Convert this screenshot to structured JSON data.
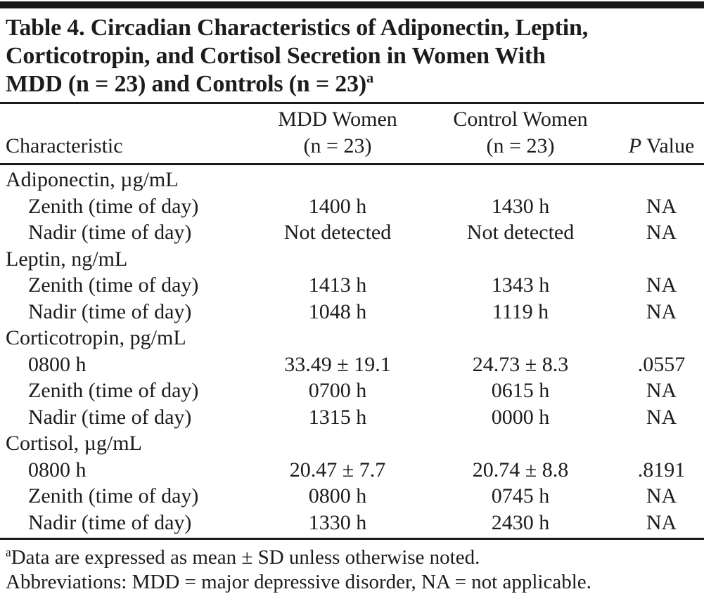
{
  "colors": {
    "ink": "#1a1a1a",
    "background": "#ffffff"
  },
  "title": {
    "line1": "Table 4. Circadian Characteristics of Adiponectin, Leptin,",
    "line2": "Corticotropin, and Cortisol Secretion in Women With",
    "line3": "MDD (n = 23) and Controls (n = 23)",
    "superscript": "a"
  },
  "header": {
    "characteristic": "Characteristic",
    "mdd_line1": "MDD Women",
    "mdd_line2": "(n = 23)",
    "control_line1": "Control Women",
    "control_line2": "(n = 23)",
    "p_italic": "P",
    "p_rest": " Value"
  },
  "rows": [
    {
      "label": "Adiponectin, µg/mL",
      "mdd": "",
      "control": "",
      "p": ""
    },
    {
      "label": "Zenith (time of day)",
      "mdd": "1400 h",
      "control": "1430 h",
      "p": "NA"
    },
    {
      "label": "Nadir (time of day)",
      "mdd": "Not detected",
      "control": "Not detected",
      "p": "NA"
    },
    {
      "label": "Leptin, ng/mL",
      "mdd": "",
      "control": "",
      "p": ""
    },
    {
      "label": "Zenith (time of day)",
      "mdd": "1413 h",
      "control": "1343 h",
      "p": "NA"
    },
    {
      "label": "Nadir (time of day)",
      "mdd": "1048 h",
      "control": "1119 h",
      "p": "NA"
    },
    {
      "label": "Corticotropin, pg/mL",
      "mdd": "",
      "control": "",
      "p": ""
    },
    {
      "label": "0800 h",
      "mdd": "33.49 ± 19.1",
      "control": "24.73 ± 8.3",
      "p": ".0557"
    },
    {
      "label": "Zenith (time of day)",
      "mdd": "0700 h",
      "control": "0615 h",
      "p": "NA"
    },
    {
      "label": "Nadir (time of day)",
      "mdd": "1315 h",
      "control": "0000 h",
      "p": "NA"
    },
    {
      "label": "Cortisol, µg/mL",
      "mdd": "",
      "control": "",
      "p": ""
    },
    {
      "label": "0800 h",
      "mdd": "20.47 ± 7.7",
      "control": "20.74 ± 8.8",
      "p": ".8191"
    },
    {
      "label": "Zenith (time of day)",
      "mdd": "0800 h",
      "control": "0745 h",
      "p": "NA"
    },
    {
      "label": "Nadir (time of day)",
      "mdd": "1330 h",
      "control": "2430 h",
      "p": "NA"
    }
  ],
  "footnotes": {
    "marker": "a",
    "line1": "Data are expressed as mean ± SD unless otherwise noted.",
    "line2": "Abbreviations: MDD = major depressive disorder, NA = not applicable."
  }
}
